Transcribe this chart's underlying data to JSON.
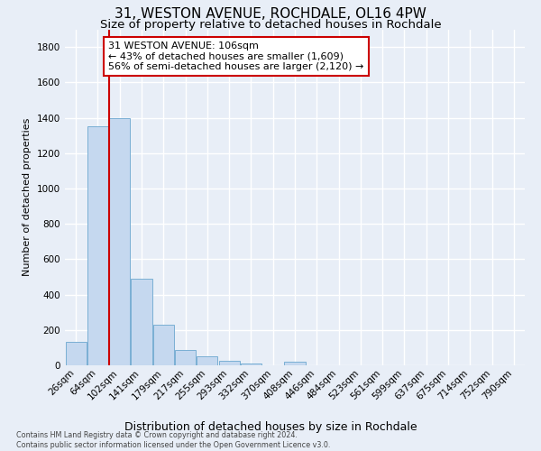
{
  "title1": "31, WESTON AVENUE, ROCHDALE, OL16 4PW",
  "title2": "Size of property relative to detached houses in Rochdale",
  "xlabel": "Distribution of detached houses by size in Rochdale",
  "ylabel": "Number of detached properties",
  "footnote": "Contains HM Land Registry data © Crown copyright and database right 2024.\nContains public sector information licensed under the Open Government Licence v3.0.",
  "bar_labels": [
    "26sqm",
    "64sqm",
    "102sqm",
    "141sqm",
    "179sqm",
    "217sqm",
    "255sqm",
    "293sqm",
    "332sqm",
    "370sqm",
    "408sqm",
    "446sqm",
    "484sqm",
    "523sqm",
    "561sqm",
    "599sqm",
    "637sqm",
    "675sqm",
    "714sqm",
    "752sqm",
    "790sqm"
  ],
  "bar_values": [
    135,
    1350,
    1400,
    490,
    230,
    85,
    50,
    28,
    12,
    0,
    20,
    0,
    0,
    0,
    0,
    0,
    0,
    0,
    0,
    0,
    0
  ],
  "bar_color": "#c5d8ef",
  "bar_edge_color": "#7aafd4",
  "vline_color": "#cc0000",
  "vline_x_pos": 1.5,
  "annotation_text": "31 WESTON AVENUE: 106sqm\n← 43% of detached houses are smaller (1,609)\n56% of semi-detached houses are larger (2,120) →",
  "annotation_box_facecolor": "#ffffff",
  "annotation_box_edgecolor": "#cc0000",
  "ylim": [
    0,
    1900
  ],
  "yticks": [
    0,
    200,
    400,
    600,
    800,
    1000,
    1200,
    1400,
    1600,
    1800
  ],
  "bg_color": "#e8eef7",
  "grid_color": "#ffffff",
  "title1_fontsize": 11,
  "title2_fontsize": 9.5,
  "ylabel_fontsize": 8,
  "xlabel_fontsize": 9,
  "tick_fontsize": 7.5,
  "annot_fontsize": 8
}
